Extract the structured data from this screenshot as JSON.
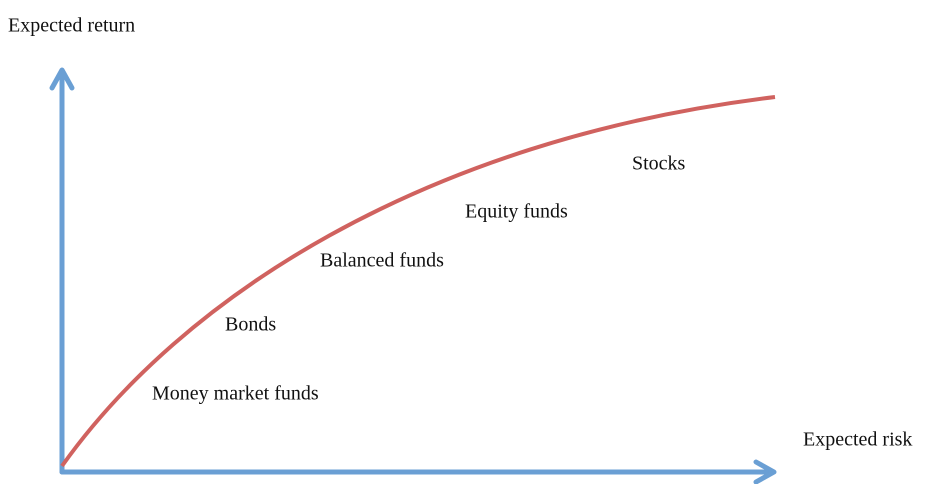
{
  "axes": {
    "y_label": "Expected return",
    "x_label": "Expected risk"
  },
  "labels": [
    "Stocks",
    "Equity funds",
    "Balanced funds",
    "Bonds",
    "Money market funds"
  ]
}
